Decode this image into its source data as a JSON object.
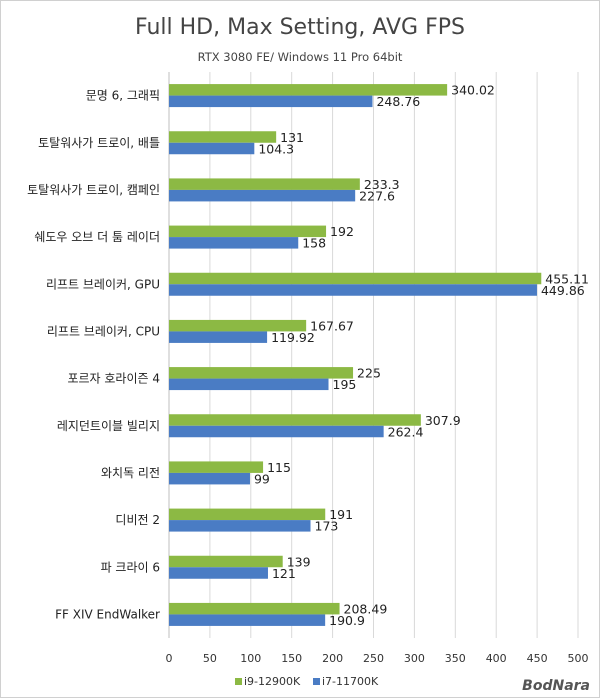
{
  "watermark": "BodNara",
  "chart_data": {
    "type": "bar",
    "orientation": "horizontal",
    "title": "Full HD, Max Setting, AVG FPS",
    "subtitle": "RTX 3080 FE/ Windows 11 Pro 64bit",
    "categories": [
      "문명 6, 그래픽",
      "토탈워사가 트로이, 배틀",
      "토탈워사가 트로이, 캠페인",
      "쉐도우 오브 더 툼 레이더",
      "리프트 브레이커, GPU",
      "리프트 브레이커, CPU",
      "포르자 호라이즌 4",
      "레지던트이블 빌리지",
      "와치독 리전",
      "디비전 2",
      "파 크라이 6",
      "FF XIV EndWalker"
    ],
    "series": [
      {
        "name": "i9-12900K",
        "color": "#8cb944",
        "values": [
          340.02,
          131,
          233.3,
          192,
          455.11,
          167.67,
          225,
          307.9,
          115,
          191,
          139,
          208.49
        ],
        "labels": [
          "340.02",
          "131",
          "233.3",
          "192",
          "455.11",
          "167.67",
          "225",
          "307.9",
          "115",
          "191",
          "139",
          "208.49"
        ]
      },
      {
        "name": "i7-11700K",
        "color": "#4a7cc4",
        "values": [
          248.76,
          104.3,
          227.6,
          158,
          449.86,
          119.92,
          195,
          262.4,
          99,
          173,
          121,
          190.9
        ],
        "labels": [
          "248.76",
          "104.3",
          "227.6",
          "158",
          "449.86",
          "119.92",
          "195",
          "262.4",
          "99",
          "173",
          "121",
          "190.9"
        ]
      }
    ],
    "xlim": [
      0,
      500
    ],
    "xticks": [
      "0",
      "50",
      "100",
      "150",
      "200",
      "250",
      "300",
      "350",
      "400",
      "450",
      "500"
    ],
    "grid": true,
    "legend_position": "bottom"
  }
}
